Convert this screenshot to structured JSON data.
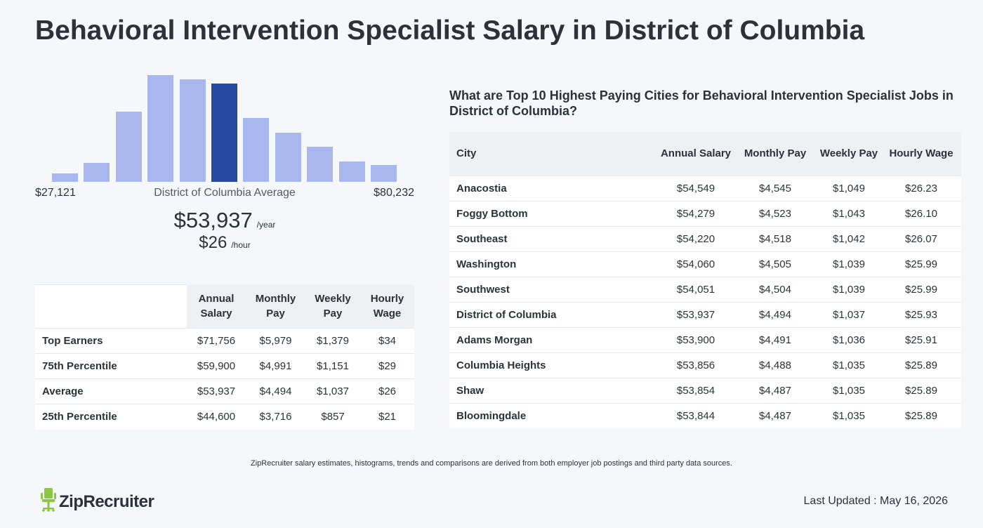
{
  "page": {
    "title": "Behavioral Intervention Specialist Salary in District of Columbia"
  },
  "histogram": {
    "min_label": "$27,121",
    "max_label": "$80,232",
    "caption": "District of Columbia Average",
    "bar_color": "#a8b8ef",
    "highlight_color": "#2549a3",
    "highlight_index": 5,
    "relative_heights": [
      0.08,
      0.18,
      0.66,
      1.0,
      0.96,
      0.92,
      0.6,
      0.46,
      0.33,
      0.19,
      0.16
    ]
  },
  "summary": {
    "annual_value": "$53,937",
    "annual_unit": "/year",
    "hourly_value": "$26",
    "hourly_unit": "/hour"
  },
  "percentile_table": {
    "headers": [
      "",
      "Annual Salary",
      "Monthly Pay",
      "Weekly Pay",
      "Hourly Wage"
    ],
    "rows": [
      [
        "Top Earners",
        "$71,756",
        "$5,979",
        "$1,379",
        "$34"
      ],
      [
        "75th Percentile",
        "$59,900",
        "$4,991",
        "$1,151",
        "$29"
      ],
      [
        "Average",
        "$53,937",
        "$4,494",
        "$1,037",
        "$26"
      ],
      [
        "25th Percentile",
        "$44,600",
        "$3,716",
        "$857",
        "$21"
      ]
    ]
  },
  "cities": {
    "heading": "What are Top 10 Highest Paying Cities for Behavioral Intervention Specialist Jobs in District of Columbia?",
    "headers": [
      "City",
      "Annual Salary",
      "Monthly Pay",
      "Weekly Pay",
      "Hourly Wage"
    ],
    "rows": [
      [
        "Anacostia",
        "$54,549",
        "$4,545",
        "$1,049",
        "$26.23"
      ],
      [
        "Foggy Bottom",
        "$54,279",
        "$4,523",
        "$1,043",
        "$26.10"
      ],
      [
        "Southeast",
        "$54,220",
        "$4,518",
        "$1,042",
        "$26.07"
      ],
      [
        "Washington",
        "$54,060",
        "$4,505",
        "$1,039",
        "$25.99"
      ],
      [
        "Southwest",
        "$54,051",
        "$4,504",
        "$1,039",
        "$25.99"
      ],
      [
        "District of Columbia",
        "$53,937",
        "$4,494",
        "$1,037",
        "$25.93"
      ],
      [
        "Adams Morgan",
        "$53,900",
        "$4,491",
        "$1,036",
        "$25.91"
      ],
      [
        "Columbia Heights",
        "$53,856",
        "$4,488",
        "$1,035",
        "$25.89"
      ],
      [
        "Shaw",
        "$53,854",
        "$4,487",
        "$1,035",
        "$25.89"
      ],
      [
        "Bloomingdale",
        "$53,844",
        "$4,487",
        "$1,035",
        "$25.89"
      ]
    ]
  },
  "footer": {
    "note": "ZipRecruiter salary estimates, histograms, trends and comparisons are derived from both employer job postings and third party data sources.",
    "logo_text": "ZipRecruiter",
    "logo_icon": "chair-icon",
    "logo_color": "#8dc63f",
    "last_updated": "Last Updated : May 16, 2026"
  }
}
